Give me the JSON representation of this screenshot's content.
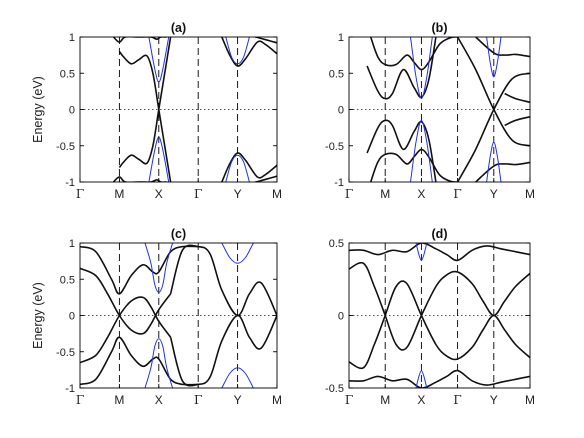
{
  "colors": {
    "primary_bands": "#111111",
    "secondary_bands": "#2233dd",
    "frame": "#000000"
  },
  "chart_data": [
    {
      "type": "line",
      "title": "(a)",
      "ylabel": "Energy (eV)",
      "ylim": [
        -1,
        1
      ],
      "yticks": [
        "-1",
        "-0.5",
        "0",
        "0.5",
        "1"
      ],
      "xticks": [
        "Γ",
        "M",
        "X",
        "Γ",
        "Y",
        "M"
      ],
      "grid": false,
      "series": [
        {
          "color": "black",
          "x": [
            1.0,
            1.1,
            1.3,
            1.5,
            1.7,
            1.85,
            2.0,
            2.15,
            2.3
          ],
          "y": [
            0.8,
            0.73,
            0.63,
            0.69,
            0.74,
            0.5,
            0.0,
            -0.5,
            -1.0
          ]
        },
        {
          "color": "black",
          "x": [
            1.0,
            1.1,
            1.3,
            1.5,
            1.7,
            1.85,
            2.0,
            2.15,
            2.3
          ],
          "y": [
            -0.8,
            -0.73,
            -0.63,
            -0.69,
            -0.74,
            -0.5,
            0.0,
            0.5,
            1.0
          ]
        },
        {
          "color": "black",
          "x": [
            0.85,
            1.0,
            1.15,
            1.5,
            1.8,
            1.95,
            2.05,
            2.2
          ],
          "y": [
            1.0,
            0.93,
            1.0,
            1.0,
            1.0,
            0.97,
            1.0,
            1.0
          ]
        },
        {
          "color": "black",
          "x": [
            0.85,
            1.0,
            1.15,
            1.5,
            1.8,
            1.95,
            2.05,
            2.2
          ],
          "y": [
            -1.0,
            -0.93,
            -1.0,
            -1.0,
            -1.0,
            -0.97,
            -1.0,
            -1.0
          ]
        },
        {
          "color": "black",
          "x": [
            3.6,
            3.8,
            4.0,
            4.2,
            4.5,
            4.7,
            5.0
          ],
          "y": [
            1.0,
            0.75,
            0.6,
            0.7,
            0.93,
            0.9,
            0.77
          ]
        },
        {
          "color": "black",
          "x": [
            3.6,
            3.8,
            4.0,
            4.2,
            4.5,
            4.7,
            5.0
          ],
          "y": [
            -1.0,
            -0.75,
            -0.6,
            -0.7,
            -0.93,
            -0.9,
            -0.77
          ]
        },
        {
          "color": "black",
          "x": [
            4.45,
            4.6,
            4.8,
            5.0
          ],
          "y": [
            1.0,
            0.98,
            0.95,
            0.92
          ]
        },
        {
          "color": "black",
          "x": [
            4.45,
            4.6,
            4.8,
            5.0
          ],
          "y": [
            -1.0,
            -0.98,
            -0.95,
            -0.92
          ]
        },
        {
          "color": "blue",
          "x": [
            1.75,
            1.9,
            2.0,
            2.1,
            2.25
          ],
          "y": [
            1.0,
            0.55,
            0.38,
            0.55,
            1.0
          ]
        },
        {
          "color": "blue",
          "x": [
            1.75,
            1.9,
            2.0,
            2.1,
            2.25
          ],
          "y": [
            -1.0,
            -0.55,
            -0.38,
            -0.55,
            -1.0
          ]
        },
        {
          "color": "blue",
          "x": [
            3.7,
            3.85,
            4.0,
            4.15,
            4.3
          ],
          "y": [
            1.0,
            0.72,
            0.63,
            0.72,
            1.0
          ]
        },
        {
          "color": "blue",
          "x": [
            3.7,
            3.85,
            4.0,
            4.15,
            4.3
          ],
          "y": [
            -1.0,
            -0.72,
            -0.63,
            -0.72,
            -1.0
          ]
        }
      ]
    },
    {
      "type": "line",
      "title": "(b)",
      "ylabel": "",
      "ylim": [
        -1,
        1
      ],
      "yticks": [
        "-1",
        "-0.5",
        "0",
        "0.5",
        "1"
      ],
      "xticks": [
        "Γ",
        "M",
        "X",
        "Γ",
        "Y",
        "M"
      ],
      "grid": false,
      "series": [
        {
          "color": "black",
          "x": [
            0.6,
            0.8,
            1.0,
            1.3,
            1.6,
            1.8,
            2.0,
            2.2,
            2.5,
            2.8,
            3.0
          ],
          "y": [
            1.0,
            0.72,
            0.62,
            0.62,
            0.75,
            0.65,
            0.55,
            0.65,
            0.9,
            0.99,
            1.0
          ]
        },
        {
          "color": "black",
          "x": [
            0.6,
            0.8,
            1.0,
            1.3,
            1.6,
            1.8,
            2.0,
            2.2,
            2.5,
            2.8,
            3.0
          ],
          "y": [
            -1.0,
            -0.72,
            -0.62,
            -0.62,
            -0.75,
            -0.65,
            -0.55,
            -0.65,
            -0.9,
            -0.99,
            -1.0
          ]
        },
        {
          "color": "black",
          "x": [
            0.5,
            0.8,
            1.0,
            1.2,
            1.5,
            1.8,
            2.0,
            2.2,
            2.4
          ],
          "y": [
            0.6,
            0.25,
            0.15,
            0.22,
            0.55,
            0.3,
            0.17,
            0.4,
            1.0
          ]
        },
        {
          "color": "black",
          "x": [
            0.5,
            0.8,
            1.0,
            1.2,
            1.5,
            1.8,
            2.0,
            2.2,
            2.4
          ],
          "y": [
            -0.6,
            -0.25,
            -0.15,
            -0.22,
            -0.55,
            -0.3,
            -0.17,
            -0.4,
            -1.0
          ]
        },
        {
          "color": "black",
          "x": [
            3.0,
            3.5,
            4.0,
            4.5,
            5.0
          ],
          "y": [
            1.0,
            0.55,
            0.0,
            -0.42,
            -0.5
          ]
        },
        {
          "color": "black",
          "x": [
            3.0,
            3.5,
            4.0,
            4.5,
            5.0
          ],
          "y": [
            -1.0,
            -0.55,
            0.0,
            0.42,
            0.5
          ]
        },
        {
          "color": "black",
          "x": [
            3.5,
            4.0,
            4.3,
            4.6,
            5.0
          ],
          "y": [
            1.0,
            0.78,
            0.75,
            0.76,
            0.73
          ]
        },
        {
          "color": "black",
          "x": [
            3.5,
            4.0,
            4.3,
            4.6,
            5.0
          ],
          "y": [
            -1.0,
            -0.78,
            -0.75,
            -0.76,
            -0.73
          ]
        },
        {
          "color": "black",
          "x": [
            4.3,
            4.6,
            5.0
          ],
          "y": [
            0.22,
            0.15,
            0.1
          ]
        },
        {
          "color": "black",
          "x": [
            4.3,
            4.6,
            5.0
          ],
          "y": [
            -0.22,
            -0.15,
            -0.1
          ]
        },
        {
          "color": "blue",
          "x": [
            1.7,
            1.85,
            2.0,
            2.15,
            2.3
          ],
          "y": [
            1.0,
            0.45,
            0.15,
            0.45,
            1.0
          ]
        },
        {
          "color": "blue",
          "x": [
            1.7,
            1.85,
            2.0,
            2.15,
            2.3
          ],
          "y": [
            -1.0,
            -0.45,
            -0.15,
            -0.45,
            -1.0
          ]
        },
        {
          "color": "blue",
          "x": [
            3.8,
            3.9,
            4.0,
            4.1,
            4.2
          ],
          "y": [
            1.0,
            0.65,
            0.45,
            0.65,
            1.0
          ]
        },
        {
          "color": "blue",
          "x": [
            3.8,
            3.9,
            4.0,
            4.1,
            4.2
          ],
          "y": [
            -1.0,
            -0.65,
            -0.45,
            -0.65,
            -1.0
          ]
        }
      ]
    },
    {
      "type": "line",
      "title": "(c)",
      "ylabel": "Energy (eV)",
      "ylim": [
        -1,
        1
      ],
      "yticks": [
        "-1",
        "-0.5",
        "0",
        "0.5",
        "1"
      ],
      "xticks": [
        "Γ",
        "M",
        "X",
        "Γ",
        "Y",
        "M"
      ],
      "grid": false,
      "series": [
        {
          "color": "black",
          "x": [
            0.0,
            0.4,
            0.8,
            1.0,
            1.3,
            1.6,
            1.85,
            2.0,
            2.3,
            2.6,
            3.0
          ],
          "y": [
            0.95,
            0.88,
            0.5,
            0.3,
            0.55,
            0.7,
            0.6,
            0.6,
            0.88,
            0.95,
            0.95
          ]
        },
        {
          "color": "black",
          "x": [
            0.0,
            0.4,
            0.8,
            1.0,
            1.3,
            1.6,
            1.85,
            2.0,
            2.3,
            2.6,
            3.0
          ],
          "y": [
            -0.95,
            -0.88,
            -0.5,
            -0.3,
            -0.55,
            -0.7,
            -0.6,
            -0.6,
            -0.88,
            -0.95,
            -0.95
          ]
        },
        {
          "color": "black",
          "x": [
            0.0,
            0.4,
            0.7,
            1.0,
            1.3,
            1.6,
            1.8,
            2.0,
            2.3
          ],
          "y": [
            0.65,
            0.55,
            0.3,
            0.0,
            -0.2,
            -0.25,
            -0.12,
            0.08,
            0.3
          ]
        },
        {
          "color": "black",
          "x": [
            0.0,
            0.4,
            0.7,
            1.0,
            1.3,
            1.6,
            1.8,
            2.0,
            2.3
          ],
          "y": [
            -0.65,
            -0.55,
            -0.3,
            0.0,
            0.2,
            0.25,
            0.12,
            -0.08,
            -0.3
          ]
        },
        {
          "color": "black",
          "x": [
            2.3,
            2.6,
            3.0,
            3.3,
            3.6,
            4.0,
            4.3,
            4.6,
            5.0
          ],
          "y": [
            0.3,
            0.9,
            0.95,
            0.85,
            0.35,
            0.0,
            0.3,
            0.45,
            0.0
          ]
        },
        {
          "color": "black",
          "x": [
            2.3,
            2.6,
            3.0,
            3.3,
            3.6,
            4.0,
            4.3,
            4.6,
            5.0
          ],
          "y": [
            -0.3,
            -0.9,
            -0.95,
            -0.85,
            -0.35,
            0.0,
            -0.3,
            -0.45,
            0.0
          ]
        },
        {
          "color": "blue",
          "x": [
            1.65,
            1.8,
            1.9,
            2.0,
            2.1,
            2.2,
            2.35
          ],
          "y": [
            1.0,
            0.72,
            0.42,
            0.32,
            0.42,
            0.72,
            1.0
          ]
        },
        {
          "color": "blue",
          "x": [
            1.65,
            1.8,
            1.9,
            2.0,
            2.1,
            2.2,
            2.35
          ],
          "y": [
            -1.0,
            -0.72,
            -0.42,
            -0.32,
            -0.42,
            -0.72,
            -1.0
          ]
        },
        {
          "color": "blue",
          "x": [
            3.6,
            3.8,
            4.0,
            4.2,
            4.4
          ],
          "y": [
            1.0,
            0.8,
            0.72,
            0.8,
            1.0
          ]
        },
        {
          "color": "blue",
          "x": [
            3.6,
            3.8,
            4.0,
            4.2,
            4.4
          ],
          "y": [
            -1.0,
            -0.8,
            -0.72,
            -0.8,
            -1.0
          ]
        }
      ]
    },
    {
      "type": "line",
      "title": "(d)",
      "ylabel": "",
      "ylim": [
        -0.5,
        0.5
      ],
      "yticks": [
        "-0.5",
        "0",
        "0.5"
      ],
      "xticks": [
        "Γ",
        "M",
        "X",
        "Γ",
        "Y",
        "M"
      ],
      "grid": false,
      "series": [
        {
          "color": "black",
          "x": [
            0.0,
            0.4,
            0.7,
            1.0,
            1.3,
            1.6,
            2.0,
            2.4,
            2.7,
            3.0,
            3.4,
            3.7,
            4.0,
            4.3,
            4.6,
            5.0
          ],
          "y": [
            0.32,
            0.36,
            0.2,
            0.0,
            -0.2,
            -0.22,
            0.0,
            0.2,
            0.28,
            0.3,
            0.22,
            0.1,
            0.0,
            0.1,
            0.2,
            0.29
          ]
        },
        {
          "color": "black",
          "x": [
            0.0,
            0.4,
            0.7,
            1.0,
            1.3,
            1.6,
            2.0,
            2.4,
            2.7,
            3.0,
            3.4,
            3.7,
            4.0,
            4.3,
            4.6,
            5.0
          ],
          "y": [
            -0.32,
            -0.36,
            -0.2,
            0.0,
            0.2,
            0.22,
            0.0,
            -0.2,
            -0.28,
            -0.3,
            -0.22,
            -0.1,
            0.0,
            -0.1,
            -0.2,
            -0.29
          ]
        },
        {
          "color": "black",
          "x": [
            0.0,
            0.4,
            0.8,
            1.2,
            1.6,
            2.0,
            2.4,
            2.7,
            3.0,
            3.4,
            3.8,
            4.2,
            4.6,
            5.0
          ],
          "y": [
            0.45,
            0.45,
            0.42,
            0.45,
            0.44,
            0.5,
            0.46,
            0.42,
            0.38,
            0.45,
            0.48,
            0.46,
            0.44,
            0.42
          ]
        },
        {
          "color": "black",
          "x": [
            0.0,
            0.4,
            0.8,
            1.2,
            1.6,
            2.0,
            2.4,
            2.7,
            3.0,
            3.4,
            3.8,
            4.2,
            4.6,
            5.0
          ],
          "y": [
            -0.45,
            -0.45,
            -0.42,
            -0.45,
            -0.44,
            -0.5,
            -0.46,
            -0.42,
            -0.38,
            -0.45,
            -0.48,
            -0.46,
            -0.44,
            -0.42
          ]
        },
        {
          "color": "blue",
          "x": [
            1.85,
            1.93,
            2.0,
            2.07,
            2.15
          ],
          "y": [
            0.5,
            0.42,
            0.38,
            0.42,
            0.5
          ]
        },
        {
          "color": "blue",
          "x": [
            1.85,
            1.93,
            2.0,
            2.07,
            2.15
          ],
          "y": [
            -0.5,
            -0.42,
            -0.38,
            -0.42,
            -0.5
          ]
        }
      ]
    }
  ]
}
